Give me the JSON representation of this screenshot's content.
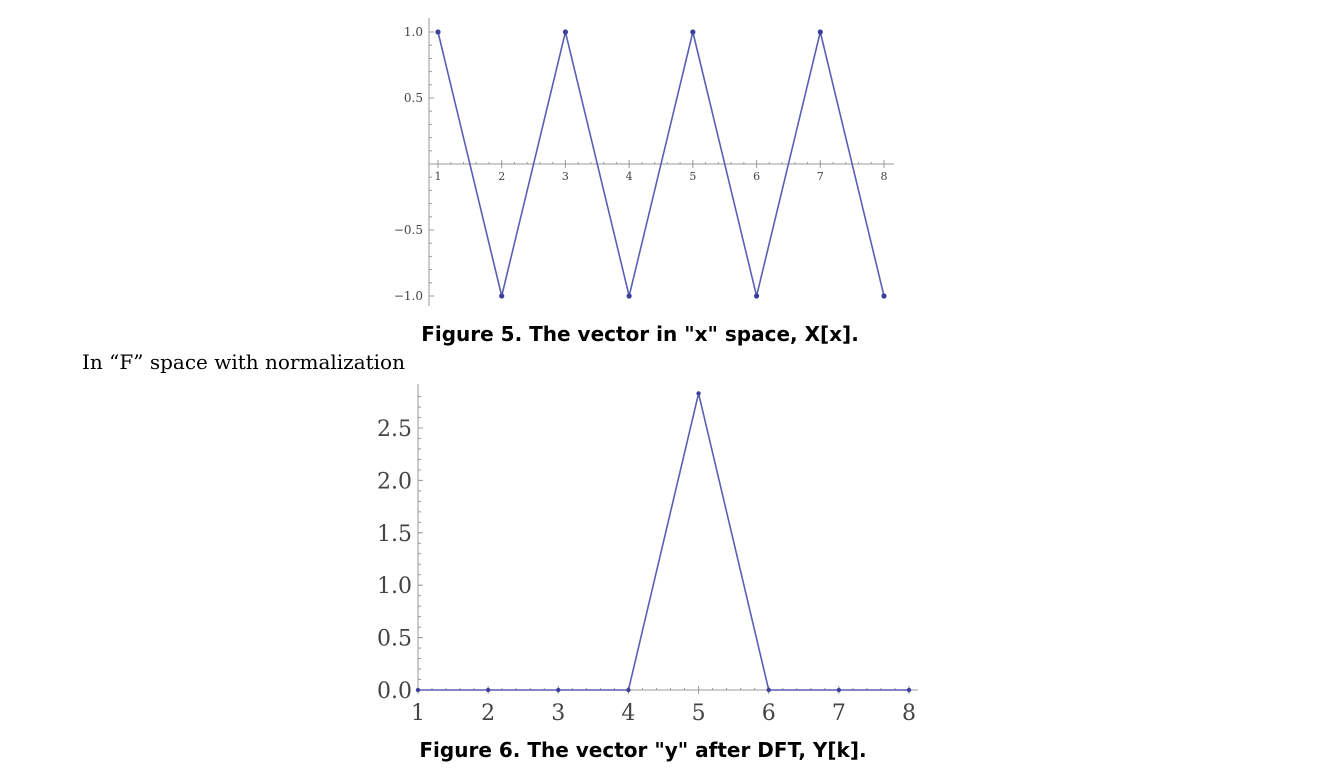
{
  "text": {
    "fig5_caption": "Figure 5. The vector in \"x\" space, X[x].",
    "paragraph": "In “F” space with normalization",
    "fig6_caption": "Figure 6. The vector \"y\" after DFT, Y[k]."
  },
  "colors": {
    "line": "#5b5fb3",
    "point": "#3d3f9a",
    "axis": "#9a9a9a"
  },
  "chart_data": [
    {
      "type": "line",
      "title": "",
      "xlabel": "",
      "ylabel": "",
      "x": [
        1,
        2,
        3,
        4,
        5,
        6,
        7,
        8
      ],
      "xlim": [
        1,
        8
      ],
      "ylim": [
        -1.0,
        1.0
      ],
      "xticks": [
        "1",
        "2",
        "3",
        "4",
        "5",
        "6",
        "7",
        "8"
      ],
      "yticks": [
        "1.0",
        "0.5",
        "−0.5",
        "−1.0"
      ],
      "grid": false,
      "series": [
        {
          "values": [
            1,
            -1,
            1,
            -1,
            1,
            -1,
            1,
            -1
          ]
        }
      ]
    },
    {
      "type": "line",
      "title": "",
      "xlabel": "",
      "ylabel": "",
      "x": [
        1,
        2,
        3,
        4,
        5,
        6,
        7,
        8
      ],
      "xlim": [
        1,
        8
      ],
      "ylim": [
        0,
        2.83
      ],
      "xticks": [
        "1",
        "2",
        "3",
        "4",
        "5",
        "6",
        "7",
        "8"
      ],
      "yticks": [
        "2.5",
        "2.0",
        "1.5",
        "1.0",
        "0.5",
        "0.0"
      ],
      "grid": false,
      "series": [
        {
          "values": [
            0,
            0,
            0,
            0,
            2.83,
            0,
            0,
            0
          ]
        }
      ]
    }
  ]
}
